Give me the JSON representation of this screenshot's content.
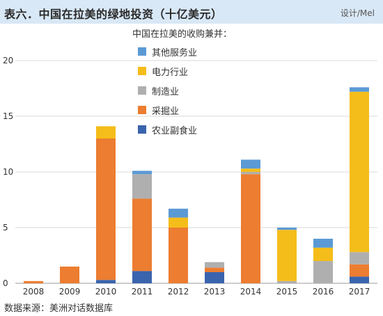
{
  "header": {
    "title": "表六．中国在拉美的绿地投资（十亿美元）",
    "designer": "设计/Mel"
  },
  "footer": {
    "source": "数据来源：美洲对话数据库"
  },
  "colors": {
    "header_bg": "#d9e8f6",
    "grid": "#d9d9d9",
    "axis": "#999999"
  },
  "chart_data": {
    "type": "bar",
    "stacked": true,
    "title": "中国在拉美的绿地投资（十亿美元）",
    "xlabel": "",
    "ylabel": "",
    "ylim": [
      0,
      20
    ],
    "yticks": [
      0,
      5,
      10,
      15,
      20
    ],
    "grid": true,
    "legend": {
      "title": "中国在拉美的收购兼并：",
      "placement": "top-center",
      "order": [
        "其他服务业",
        "电力行业",
        "制造业",
        "采掘业",
        "农业副食业"
      ]
    },
    "categories": [
      "2008",
      "2009",
      "2010",
      "2011",
      "2012",
      "2013",
      "2014",
      "2015",
      "2016",
      "2017"
    ],
    "series": [
      {
        "name": "农业副食业",
        "color": "#3a64ad",
        "values": [
          0,
          0,
          0.3,
          1.1,
          0,
          1.0,
          0,
          0,
          0,
          0.6
        ]
      },
      {
        "name": "采掘业",
        "color": "#ec7d31",
        "values": [
          0.2,
          1.5,
          12.7,
          6.5,
          5.0,
          0.4,
          9.8,
          0,
          0,
          1.1
        ]
      },
      {
        "name": "制造业",
        "color": "#afafaf",
        "values": [
          0,
          0,
          0,
          2.2,
          0,
          0.5,
          0.2,
          0.2,
          2.0,
          1.1
        ]
      },
      {
        "name": "电力行业",
        "color": "#f5bd1a",
        "values": [
          0,
          0,
          1.1,
          0,
          0.9,
          0,
          0.3,
          4.6,
          1.2,
          14.4
        ]
      },
      {
        "name": "其他服务业",
        "color": "#5b9ad5",
        "values": [
          0,
          0,
          0,
          0.3,
          0.8,
          0,
          0.8,
          0.2,
          0.8,
          0.4
        ]
      }
    ]
  }
}
